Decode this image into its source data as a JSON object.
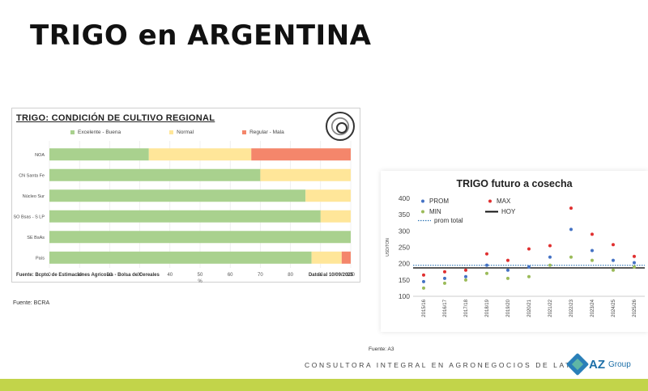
{
  "slide": {
    "title": "TRIGO en ARGENTINA",
    "footer_text": "CONSULTORA INTEGRAL EN AGRONEGOCIOS DE LATAM",
    "logo_word": "AZ",
    "logo_group": "Group",
    "source_left": "Fuente: BCRA",
    "source_right": "Fuente: A3",
    "band_color": "#c2d44a"
  },
  "chart_data": [
    {
      "type": "bar",
      "orientation": "horizontal",
      "stacked": true,
      "title": "TRIGO: CONDICIÓN DE CULTIVO REGIONAL",
      "categories": [
        "NOA",
        "CN Santa Fe",
        "Núcleo Sur",
        "SO Bsas - S LP",
        "SE BsAs",
        "País"
      ],
      "series": [
        {
          "name": "Excelente - Buena",
          "color": "#a9d18e",
          "values": [
            33,
            70,
            85,
            90,
            100,
            87
          ]
        },
        {
          "name": "Normal",
          "color": "#ffe699",
          "values": [
            34,
            30,
            15,
            10,
            0,
            10
          ]
        },
        {
          "name": "Regular - Mala",
          "color": "#f4866b",
          "values": [
            33,
            0,
            0,
            0,
            0,
            3
          ]
        }
      ],
      "xlim": [
        0,
        100
      ],
      "x_ticks": [
        "0",
        "10",
        "20",
        "30",
        "40",
        "50",
        "60",
        "70",
        "80",
        "90",
        "100"
      ],
      "xlabel": "%",
      "legend_position": "top",
      "footnote_source": "Fuente: Bcpto. de Estimaciones Agrícolas - Bolsa de Cereales",
      "footnote_date": "Datos al 10/09/2025"
    },
    {
      "type": "scatter",
      "title": "TRIGO futuro a cosecha",
      "categories": [
        "2015/16",
        "2016/17",
        "2017/18",
        "2018/19",
        "2019/20",
        "2020/21",
        "2021/22",
        "2022/23",
        "2023/24",
        "2024/25",
        "2025/26"
      ],
      "ylabel": "USD/TON",
      "ylim": [
        100,
        400
      ],
      "y_ticks": [
        "100",
        "150",
        "200",
        "250",
        "300",
        "350",
        "400"
      ],
      "series": [
        {
          "name": "PROM",
          "color": "#4472c4",
          "values": [
            145,
            155,
            160,
            195,
            180,
            190,
            220,
            305,
            240,
            210,
            203
          ]
        },
        {
          "name": "MAX",
          "color": "#e03030",
          "values": [
            165,
            175,
            180,
            230,
            210,
            245,
            255,
            370,
            290,
            258,
            222
          ]
        },
        {
          "name": "MIN",
          "color": "#9bbb59",
          "values": [
            125,
            140,
            150,
            170,
            155,
            160,
            195,
            220,
            210,
            180,
            190
          ]
        }
      ],
      "reference_lines": [
        {
          "name": "prom total",
          "color": "#2e75b6",
          "style": "dotted",
          "value": 195
        },
        {
          "name": "HOY",
          "color": "#111111",
          "style": "solid",
          "value": 187
        }
      ],
      "legend_position": "top-left"
    }
  ]
}
